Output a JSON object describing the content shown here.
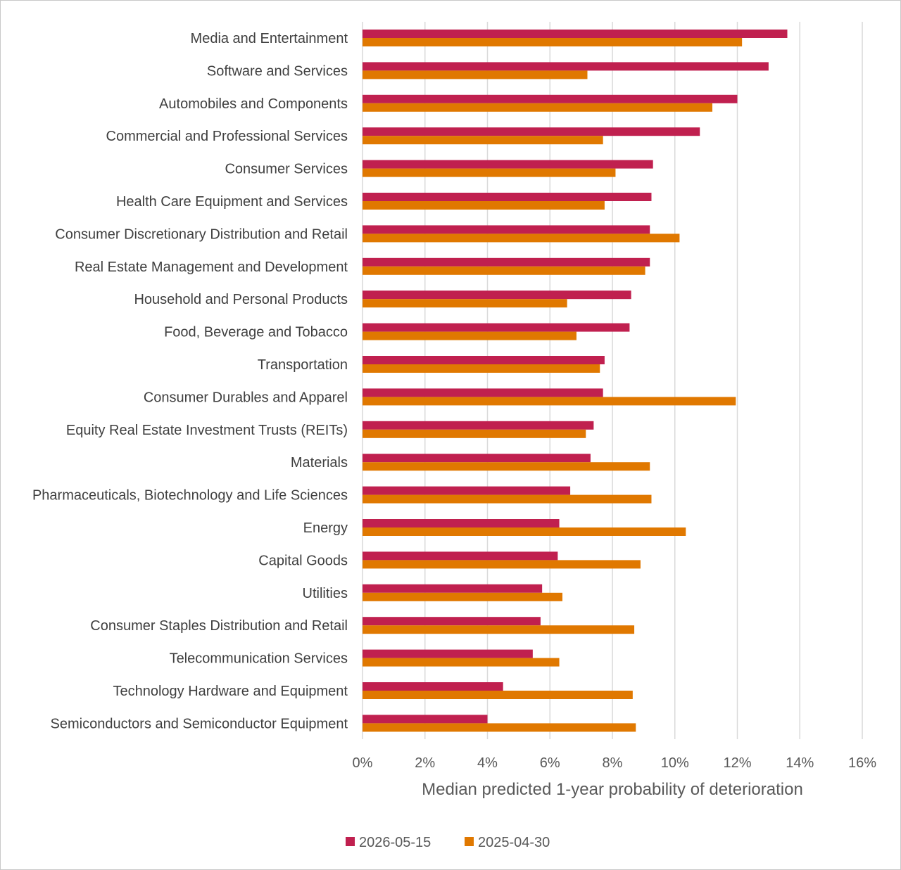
{
  "chart_data": {
    "type": "bar",
    "orientation": "horizontal",
    "title": "",
    "xlabel": "Median predicted 1-year probability of deterioration",
    "ylabel": "",
    "xlim": [
      0,
      16
    ],
    "x_ticks": [
      "0%",
      "2%",
      "4%",
      "6%",
      "8%",
      "10%",
      "12%",
      "14%",
      "16%"
    ],
    "grid": true,
    "legend_position": "bottom",
    "categories": [
      "Media and Entertainment",
      "Software and Services",
      "Automobiles and Components",
      "Commercial and Professional Services",
      "Consumer Services",
      "Health Care Equipment and Services",
      "Consumer Discretionary Distribution and Retail",
      "Real Estate Management and Development",
      "Household and Personal Products",
      "Food, Beverage and Tobacco",
      "Transportation",
      "Consumer Durables and Apparel",
      "Equity Real Estate Investment Trusts (REITs)",
      "Materials",
      "Pharmaceuticals, Biotechnology and Life Sciences",
      "Energy",
      "Capital Goods",
      "Utilities",
      "Consumer Staples Distribution and Retail",
      "Telecommunication Services",
      "Technology Hardware and Equipment",
      "Semiconductors and Semiconductor Equipment"
    ],
    "series": [
      {
        "name": "2026-05-15",
        "color": "#c0204f",
        "values": [
          13.6,
          13.0,
          12.0,
          10.8,
          9.3,
          9.25,
          9.2,
          9.2,
          8.6,
          8.55,
          7.75,
          7.7,
          7.4,
          7.3,
          6.65,
          6.3,
          6.25,
          5.75,
          5.7,
          5.45,
          4.5,
          4.0
        ]
      },
      {
        "name": "2025-04-30",
        "color": "#e07800",
        "values": [
          12.15,
          7.2,
          11.2,
          7.7,
          8.1,
          7.75,
          10.15,
          9.05,
          6.55,
          6.85,
          7.6,
          11.95,
          7.15,
          9.2,
          9.25,
          10.35,
          8.9,
          6.4,
          8.7,
          6.3,
          8.65,
          8.75
        ]
      }
    ]
  }
}
